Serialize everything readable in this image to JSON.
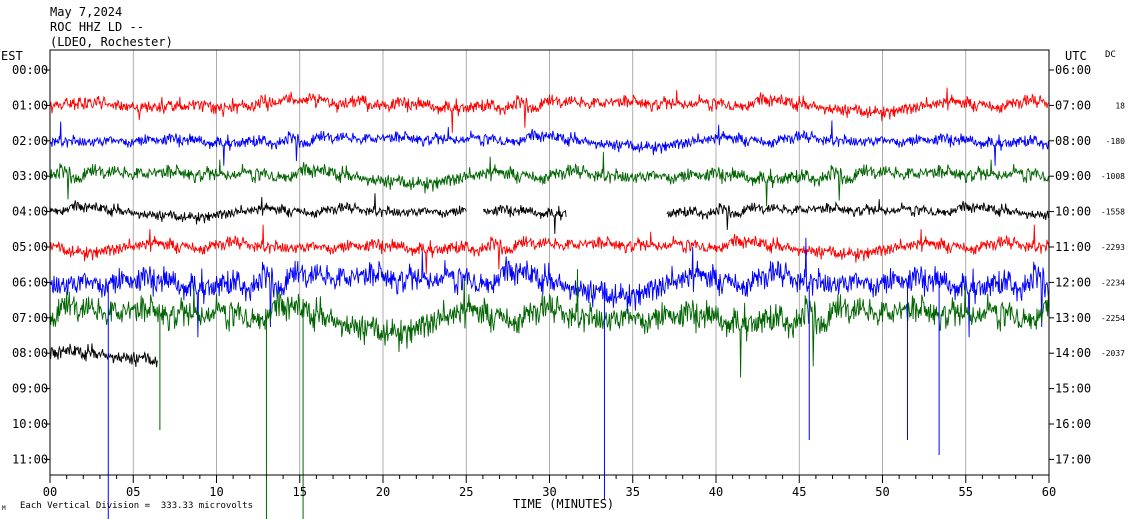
{
  "header": {
    "date": "May 7,2024",
    "station": "ROC HHZ LD --",
    "network": "(LDEO, Rochester)"
  },
  "left_axis_title": "EST",
  "right_axis_title": "UTC",
  "dc_title": "DC",
  "x_axis_title": "TIME (MINUTES)",
  "footer_note": "Each Vertical Division =  333.33 microvolts",
  "footer_mark": "M",
  "chart_data": {
    "type": "line",
    "title": "ROC HHZ LD --",
    "xlabel": "TIME (MINUTES)",
    "xlim": [
      0,
      60
    ],
    "x_ticks": [
      "00",
      "05",
      "10",
      "15",
      "20",
      "25",
      "30",
      "35",
      "40",
      "45",
      "50",
      "55",
      "60"
    ],
    "rows_est": [
      "00:00",
      "01:00",
      "02:00",
      "03:00",
      "04:00",
      "05:00",
      "06:00",
      "07:00",
      "08:00",
      "09:00",
      "10:00",
      "11:00"
    ],
    "rows_utc": [
      "06:00",
      "07:00",
      "08:00",
      "09:00",
      "10:00",
      "11:00",
      "12:00",
      "13:00",
      "14:00",
      "15:00",
      "16:00",
      "17:00"
    ],
    "dc_offsets": [
      "18",
      "-180",
      "-1008",
      "-1558",
      "-2293",
      "-2234",
      "-2254",
      "-2037"
    ],
    "trace_colors": [
      "#ff0000",
      "#0000ff",
      "#006400",
      "#000000"
    ],
    "traces": [
      {
        "row": 1,
        "color": "#ff0000",
        "end_minute": 60,
        "amplitude": 0.55
      },
      {
        "row": 2,
        "color": "#0000ff",
        "end_minute": 60,
        "amplitude": 0.5
      },
      {
        "row": 3,
        "color": "#006400",
        "end_minute": 60,
        "amplitude": 0.6
      },
      {
        "row": 4,
        "color": "#000000",
        "end_minute": 60,
        "amplitude": 0.45,
        "gaps": [
          [
            25,
            26
          ],
          [
            31,
            37
          ]
        ]
      },
      {
        "row": 5,
        "color": "#ff0000",
        "end_minute": 60,
        "amplitude": 0.55
      },
      {
        "row": 6,
        "color": "#0000ff",
        "end_minute": 60,
        "amplitude": 1.1
      },
      {
        "row": 7,
        "color": "#006400",
        "end_minute": 60,
        "amplitude": 1.2
      },
      {
        "row": 8,
        "color": "#000000",
        "end_minute": 6.5,
        "amplitude": 0.6
      }
    ],
    "grid": true
  }
}
